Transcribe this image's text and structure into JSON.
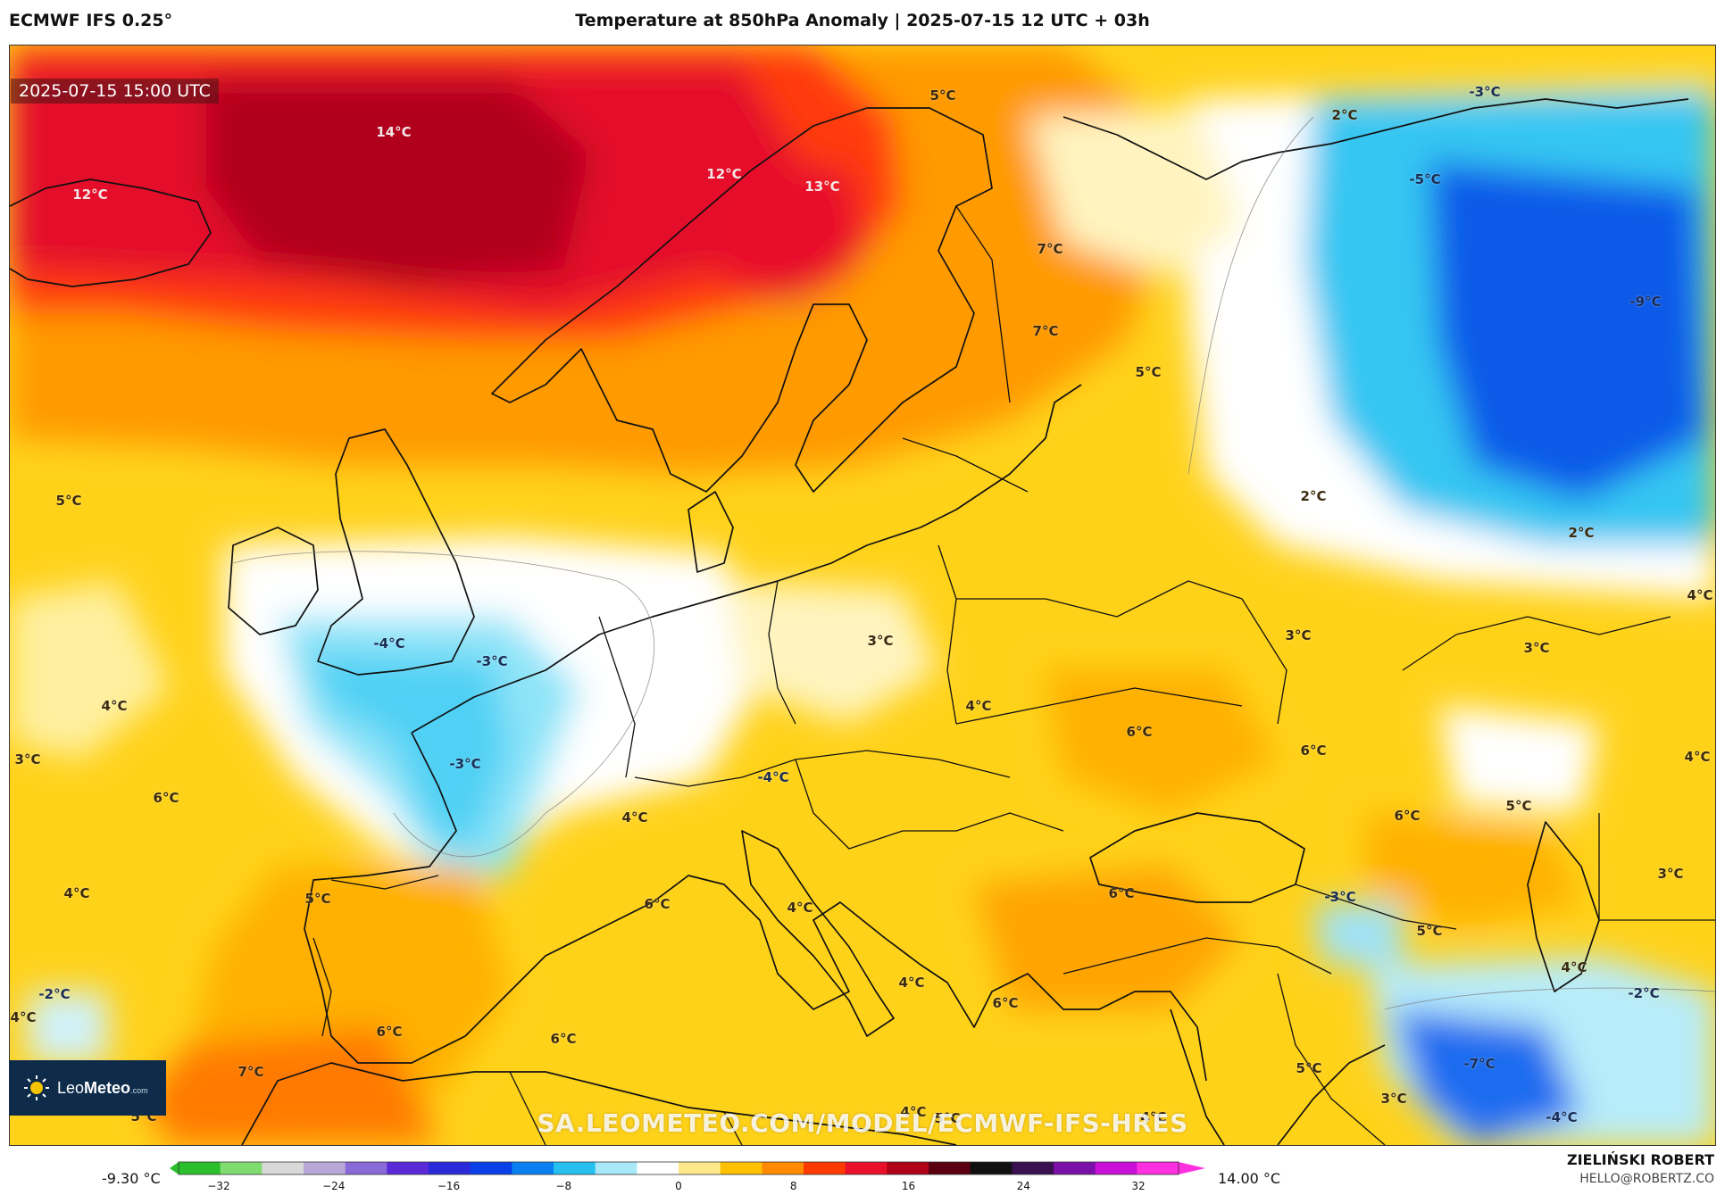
{
  "header": {
    "model": "ECMWF IFS 0.25°",
    "title": "Temperature at 850hPa Anomaly | 2025-07-15 12 UTC + 03h"
  },
  "valid_time": "2025-07-15 15:00 UTC",
  "labels": [
    {
      "text": "14°C",
      "kind": "hot"
    },
    {
      "text": "12°C",
      "kind": "hot"
    },
    {
      "text": "12°C",
      "kind": "hot"
    },
    {
      "text": "13°C",
      "kind": "hot"
    },
    {
      "text": "5°C",
      "kind": "warm"
    },
    {
      "text": "7°C",
      "kind": "warm"
    },
    {
      "text": "7°C",
      "kind": "warm"
    },
    {
      "text": "5°C",
      "kind": "warm"
    },
    {
      "text": "2°C",
      "kind": "warm"
    },
    {
      "text": "-3°C",
      "kind": "cold"
    },
    {
      "text": "-5°C",
      "kind": "cold"
    },
    {
      "text": "-9°C",
      "kind": "cold"
    },
    {
      "text": "5°C",
      "kind": "warm"
    },
    {
      "text": "2°C",
      "kind": "warm"
    },
    {
      "text": "2°C",
      "kind": "warm"
    },
    {
      "text": "4°C",
      "kind": "warm"
    },
    {
      "text": "-4°C",
      "kind": "cold"
    },
    {
      "text": "-3°C",
      "kind": "cold"
    },
    {
      "text": "3°C",
      "kind": "warm"
    },
    {
      "text": "3°C",
      "kind": "warm"
    },
    {
      "text": "3°C",
      "kind": "warm"
    },
    {
      "text": "4°C",
      "kind": "warm"
    },
    {
      "text": "4°C",
      "kind": "warm"
    },
    {
      "text": "3°C",
      "kind": "warm"
    },
    {
      "text": "-3°C",
      "kind": "cold"
    },
    {
      "text": "6°C",
      "kind": "warm"
    },
    {
      "text": "6°C",
      "kind": "warm"
    },
    {
      "text": "4°C",
      "kind": "warm"
    },
    {
      "text": "6°C",
      "kind": "warm"
    },
    {
      "text": "-4°C",
      "kind": "cold"
    },
    {
      "text": "4°C",
      "kind": "warm"
    },
    {
      "text": "6°C",
      "kind": "warm"
    },
    {
      "text": "5°C",
      "kind": "warm"
    },
    {
      "text": "3°C",
      "kind": "warm"
    },
    {
      "text": "4°C",
      "kind": "warm"
    },
    {
      "text": "5°C",
      "kind": "warm"
    },
    {
      "text": "6°C",
      "kind": "warm"
    },
    {
      "text": "4°C",
      "kind": "warm"
    },
    {
      "text": "6°C",
      "kind": "warm"
    },
    {
      "text": "-3°C",
      "kind": "cold"
    },
    {
      "text": "5°C",
      "kind": "warm"
    },
    {
      "text": "4°C",
      "kind": "warm"
    },
    {
      "text": "-2°C",
      "kind": "cold"
    },
    {
      "text": "-2°C",
      "kind": "cold"
    },
    {
      "text": "4°C",
      "kind": "warm"
    },
    {
      "text": "4°C",
      "kind": "warm"
    },
    {
      "text": "6°C",
      "kind": "warm"
    },
    {
      "text": "6°C",
      "kind": "warm"
    },
    {
      "text": "6°C",
      "kind": "warm"
    },
    {
      "text": "7°C",
      "kind": "warm"
    },
    {
      "text": "5°C",
      "kind": "warm"
    },
    {
      "text": "-7°C",
      "kind": "cold"
    },
    {
      "text": "5°C",
      "kind": "warm"
    },
    {
      "text": "3°C",
      "kind": "warm"
    },
    {
      "text": "-4°C",
      "kind": "cold"
    },
    {
      "text": "4°C",
      "kind": "warm"
    },
    {
      "text": "4°C",
      "kind": "warm"
    },
    {
      "text": "5°C",
      "kind": "warm"
    }
  ],
  "logo": {
    "name_light": "Leo",
    "name_bold": "Meteo",
    "domain": ".com"
  },
  "watermark": "SA.LEOMETEO.COM/MODEL/ECMWF-IFS-HRES",
  "colorbar": {
    "min_label": "-9.30 °C",
    "max_label": "14.00 °C",
    "ticks": [
      "−32",
      "−24",
      "−16",
      "−8",
      "0",
      "8",
      "16",
      "24",
      "32"
    ],
    "range": [
      -32,
      32
    ],
    "colors": [
      "#2bbf2b",
      "#7fdc6f",
      "#d8d8d8",
      "#b8a8d8",
      "#8a6ad8",
      "#5a2ad8",
      "#2a2ad8",
      "#0a40e8",
      "#0a80f0",
      "#28c0f0",
      "#a8e8f8",
      "#ffffff",
      "#ffe88a",
      "#ffc000",
      "#ff8a00",
      "#ff3a00",
      "#e8102a",
      "#b00018",
      "#5a0010",
      "#101010",
      "#3a1050",
      "#7a10a8",
      "#c810d8",
      "#ff30e0"
    ]
  },
  "credits": {
    "author": "ZIELIŃSKI ROBERT",
    "email": "HELLO@ROBERTZ.CO"
  },
  "palette": {
    "hot": "#b80010",
    "warm": "#ffc400",
    "cold": "#1b6cf0",
    "neutral": "#ffffff"
  }
}
